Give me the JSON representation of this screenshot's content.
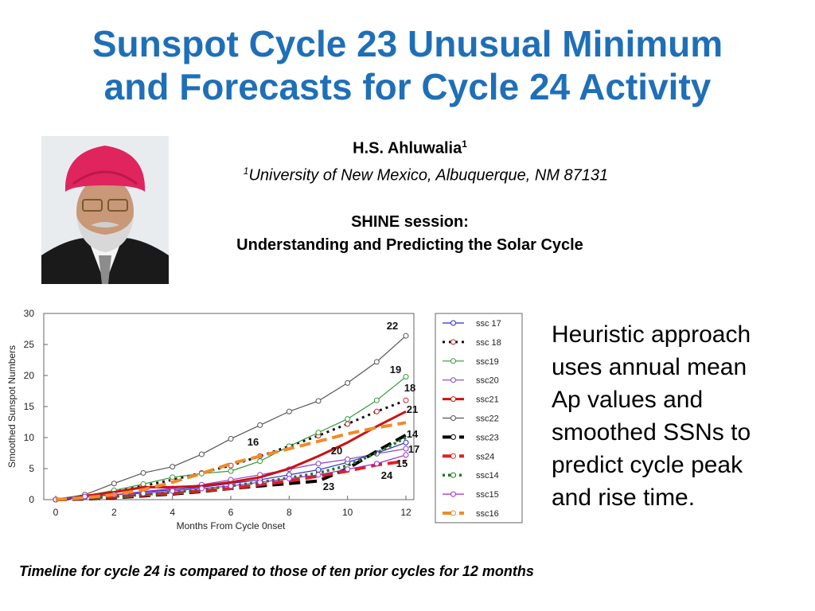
{
  "title": {
    "line1": "Sunspot Cycle 23 Unusual Minimum",
    "line2": "and Forecasts for Cycle 24 Activity"
  },
  "author": {
    "name": "H.S. Ahluwalia",
    "sup": "1"
  },
  "affiliation": {
    "sup": "1",
    "text": "University of New Mexico, Albuquerque, NM 87131"
  },
  "session": {
    "line1": "SHINE session:",
    "line2": "Understanding and Predicting the Solar Cycle"
  },
  "side_text": [
    "Heuristic approach",
    "uses annual mean",
    "Ap values and",
    "smoothed SSNs to",
    "predict cycle peak",
    "and rise time."
  ],
  "caption": "Timeline for cycle 24 is compared to those of ten prior cycles for 12 months",
  "colors": {
    "title": "#1f6fb8"
  },
  "chart_data": {
    "type": "line",
    "xlabel": "Months From Cycle 0nset",
    "ylabel": "Smoothed Sunspot Numbers",
    "xlim": [
      0,
      12
    ],
    "ylim": [
      0,
      30
    ],
    "xticks": [
      0,
      2,
      4,
      6,
      8,
      10,
      12
    ],
    "yticks": [
      0,
      5,
      10,
      15,
      20,
      25,
      30
    ],
    "grid": false,
    "legend_position": "right",
    "x": [
      0,
      1,
      2,
      3,
      4,
      5,
      6,
      7,
      8,
      9,
      10,
      11,
      12
    ],
    "series": [
      {
        "name": "ssc 17",
        "end_label": "17",
        "color": "#2a2ad0",
        "style": "thin",
        "values": [
          0,
          0.4,
          0.8,
          1.2,
          1.6,
          2.0,
          2.6,
          3.2,
          4.0,
          4.8,
          6.0,
          7.5,
          9.2
        ]
      },
      {
        "name": "ssc 18",
        "end_label": "18",
        "color": "#111111",
        "style": "dotted-red",
        "values": [
          0,
          0.5,
          1.2,
          2.2,
          3.2,
          4.3,
          5.5,
          7.0,
          8.6,
          10.3,
          12.2,
          14.2,
          16.0
        ]
      },
      {
        "name": "ssc19",
        "end_label": "19",
        "color": "#2e9a3a",
        "style": "thin",
        "values": [
          0,
          0.6,
          1.5,
          2.5,
          3.6,
          4.2,
          4.6,
          6.2,
          8.6,
          10.8,
          13.0,
          16.0,
          19.8
        ]
      },
      {
        "name": "ssc20",
        "end_label": "20",
        "color": "#8a3cc8",
        "style": "thin",
        "values": [
          0,
          0.4,
          0.8,
          1.3,
          1.8,
          2.4,
          3.2,
          4.0,
          4.9,
          5.8,
          6.5,
          7.4,
          8.2
        ]
      },
      {
        "name": "ssc21",
        "end_label": "21",
        "color": "#cc1111",
        "style": "thick",
        "values": [
          0,
          0.6,
          1.2,
          2.0,
          2.0,
          2.2,
          2.8,
          3.6,
          5.0,
          7.0,
          9.2,
          11.8,
          14.2
        ]
      },
      {
        "name": "ssc22",
        "end_label": "22",
        "color": "#555555",
        "style": "thin",
        "values": [
          0,
          0.8,
          2.6,
          4.3,
          5.3,
          7.3,
          9.8,
          12.0,
          14.2,
          15.9,
          18.8,
          22.2,
          26.4
        ]
      },
      {
        "name": "ssc23",
        "end_label": "23",
        "color": "#000000",
        "style": "dashed-thick",
        "values": [
          0,
          0.1,
          0.3,
          0.6,
          0.9,
          1.3,
          1.8,
          2.2,
          2.6,
          3.0,
          5.0,
          7.8,
          10.4
        ]
      },
      {
        "name": "ss24",
        "end_label": "24",
        "color": "#e02020",
        "style": "dashed-thick",
        "values": [
          0,
          0.2,
          0.4,
          0.7,
          1.0,
          1.4,
          1.8,
          2.4,
          3.0,
          3.8,
          4.6,
          5.6,
          6.2
        ]
      },
      {
        "name": "ssc14",
        "end_label": "14",
        "color": "#1e7a1e",
        "style": "dotted-thick",
        "values": [
          0,
          0.2,
          0.5,
          0.8,
          1.2,
          1.6,
          2.2,
          2.8,
          3.5,
          4.3,
          5.5,
          7.5,
          10.0
        ]
      },
      {
        "name": "ssc15",
        "end_label": "15",
        "color": "#9a2fd0",
        "style": "thin",
        "values": [
          0,
          0.5,
          0.8,
          1.0,
          1.4,
          1.8,
          2.2,
          2.8,
          3.4,
          4.0,
          4.9,
          5.8,
          7.2
        ]
      },
      {
        "name": "ssc16",
        "end_label": "16",
        "color": "#f08a2a",
        "style": "dashed-thick",
        "values": [
          0,
          0.3,
          0.8,
          1.6,
          2.8,
          4.2,
          5.8,
          7.0,
          8.2,
          9.4,
          10.6,
          11.6,
          12.4
        ]
      }
    ]
  }
}
